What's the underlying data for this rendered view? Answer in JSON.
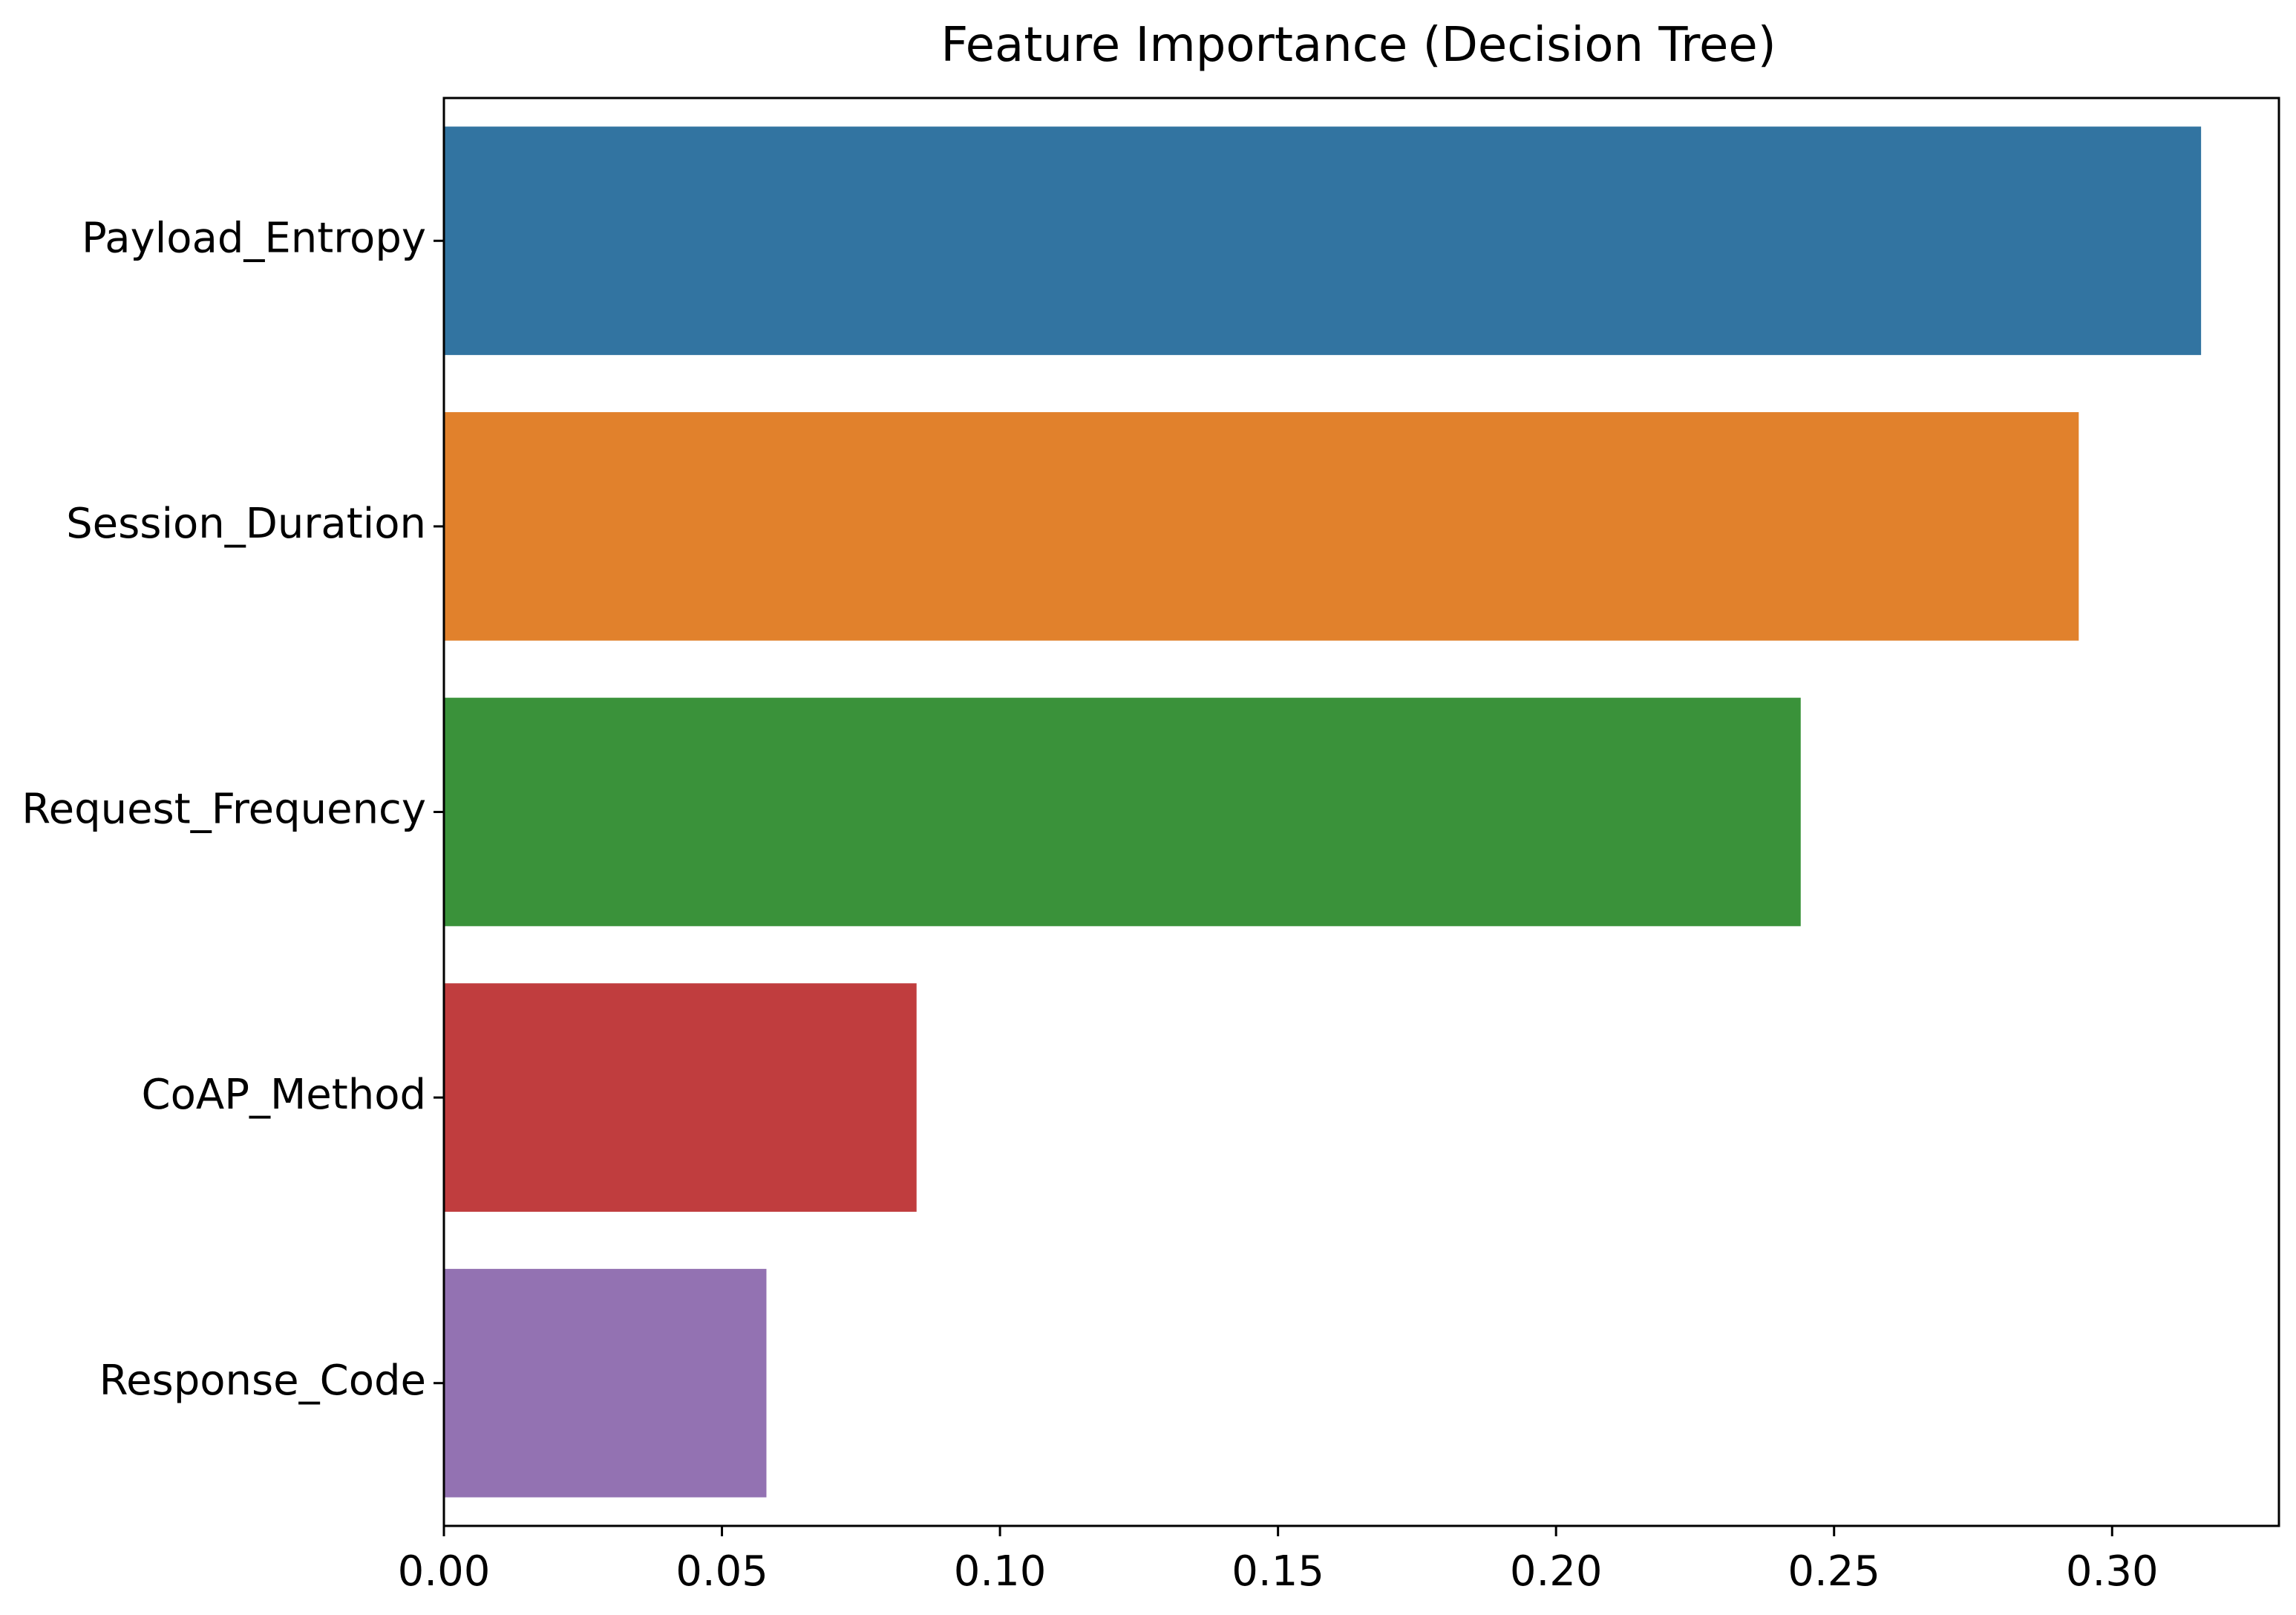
{
  "chart_data": {
    "type": "bar",
    "orientation": "horizontal",
    "title": "Feature Importance (Decision Tree)",
    "xlabel": "",
    "ylabel": "",
    "categories": [
      "Payload_Entropy",
      "Session_Duration",
      "Request_Frequency",
      "CoAP_Method",
      "Response_Code"
    ],
    "values": [
      0.316,
      0.294,
      0.244,
      0.085,
      0.058
    ],
    "colors": [
      "#3274a1",
      "#e1812c",
      "#3a923a",
      "#c03d3e",
      "#9372b2"
    ],
    "xlim": [
      0,
      0.33
    ],
    "xticks": [
      0.0,
      0.05,
      0.1,
      0.15,
      0.2,
      0.25,
      0.3
    ],
    "xtick_labels": [
      "0.00",
      "0.05",
      "0.10",
      "0.15",
      "0.20",
      "0.25",
      "0.30"
    ],
    "grid": false,
    "legend": "none"
  }
}
